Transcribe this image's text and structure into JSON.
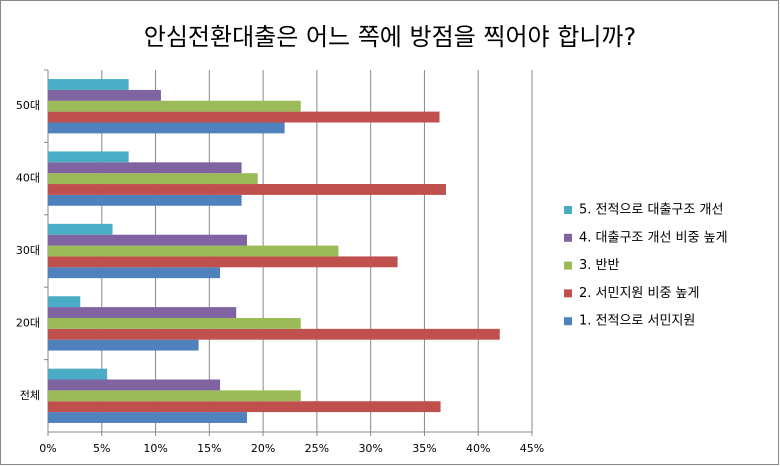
{
  "chart_data": {
    "type": "hbar",
    "title": "안심전환대출은 어느 쪽에 방점을 찍어야 합니까?",
    "categories": [
      "전체",
      "20대",
      "30대",
      "40대",
      "50대"
    ],
    "series": [
      {
        "name": "1. 전적으로 서민지원",
        "color": "#4f81bd",
        "values": [
          18.5,
          14,
          16,
          18,
          22
        ]
      },
      {
        "name": "2. 서민지원 비중 높게",
        "color": "#c0504d",
        "values": [
          36.5,
          42,
          32.5,
          37,
          36.4
        ]
      },
      {
        "name": "3. 반반",
        "color": "#9bbb59",
        "values": [
          23.5,
          23.5,
          27,
          19.5,
          23.5
        ]
      },
      {
        "name": "4. 대출구조 개선 비중 높게",
        "color": "#8064a2",
        "values": [
          16,
          17.5,
          18.5,
          18,
          10.5
        ]
      },
      {
        "name": "5. 전적으로 대출구조 개선",
        "color": "#4bacc6",
        "values": [
          5.5,
          3,
          6,
          7.5,
          7.5
        ]
      }
    ],
    "xlim": [
      0,
      45
    ],
    "xticks": [
      {
        "value": 0,
        "label": "0%"
      },
      {
        "value": 5,
        "label": "5%"
      },
      {
        "value": 10,
        "label": "10%"
      },
      {
        "value": 15,
        "label": "15%"
      },
      {
        "value": 20,
        "label": "20%"
      },
      {
        "value": 25,
        "label": "25%"
      },
      {
        "value": 30,
        "label": "30%"
      },
      {
        "value": 35,
        "label": "35%"
      },
      {
        "value": 40,
        "label": "40%"
      },
      {
        "value": 45,
        "label": "45%"
      }
    ],
    "grid": true,
    "legend": "right"
  }
}
